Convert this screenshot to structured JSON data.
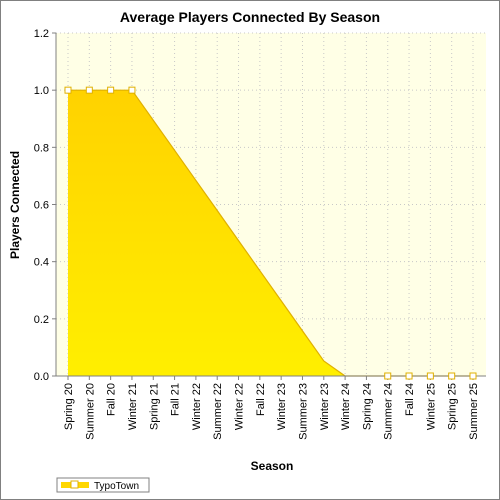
{
  "chart_data": {
    "type": "area",
    "title": "Average Players Connected By Season",
    "xlabel": "Season",
    "ylabel": "Players Connected",
    "ylim": [
      0,
      1.2
    ],
    "yticks": [
      "0.0",
      "0.2",
      "0.4",
      "0.6",
      "0.8",
      "1.0",
      "1.2"
    ],
    "grid": true,
    "legend_position": "bottom-left",
    "categories": [
      "Spring 20",
      "Summer 20",
      "Fall 20",
      "Winter 21",
      "Spring 21",
      "Fall 21",
      "Winter 22",
      "Summer 22",
      "Winter 22",
      "Fall 22",
      "Winter 23",
      "Summer 23",
      "Winter 23",
      "Winter 24",
      "Spring 24",
      "Summer 24",
      "Fall 24",
      "Winter 25",
      "Spring 25",
      "Summer 25"
    ],
    "series": [
      {
        "name": "TypoTown",
        "color": "#ffd700",
        "values": [
          1.0,
          1.0,
          1.0,
          1.0,
          0.8947,
          0.7895,
          0.6842,
          0.5789,
          0.4737,
          0.3684,
          0.2632,
          0.1579,
          0.0526,
          0.0,
          0.0,
          0.0,
          0.0,
          0.0,
          0.0,
          0.0
        ],
        "marked": [
          true,
          true,
          true,
          true,
          false,
          false,
          false,
          false,
          false,
          false,
          false,
          false,
          false,
          false,
          false,
          true,
          true,
          true,
          true,
          true
        ]
      }
    ]
  },
  "colors": {
    "plot_background": "#ffffe6",
    "area_top": "#ffd200",
    "area_bottom": "#ffef00",
    "line": "#e0b000",
    "marker_fill": "#ffffff",
    "gridline": "#c8c8c8"
  }
}
